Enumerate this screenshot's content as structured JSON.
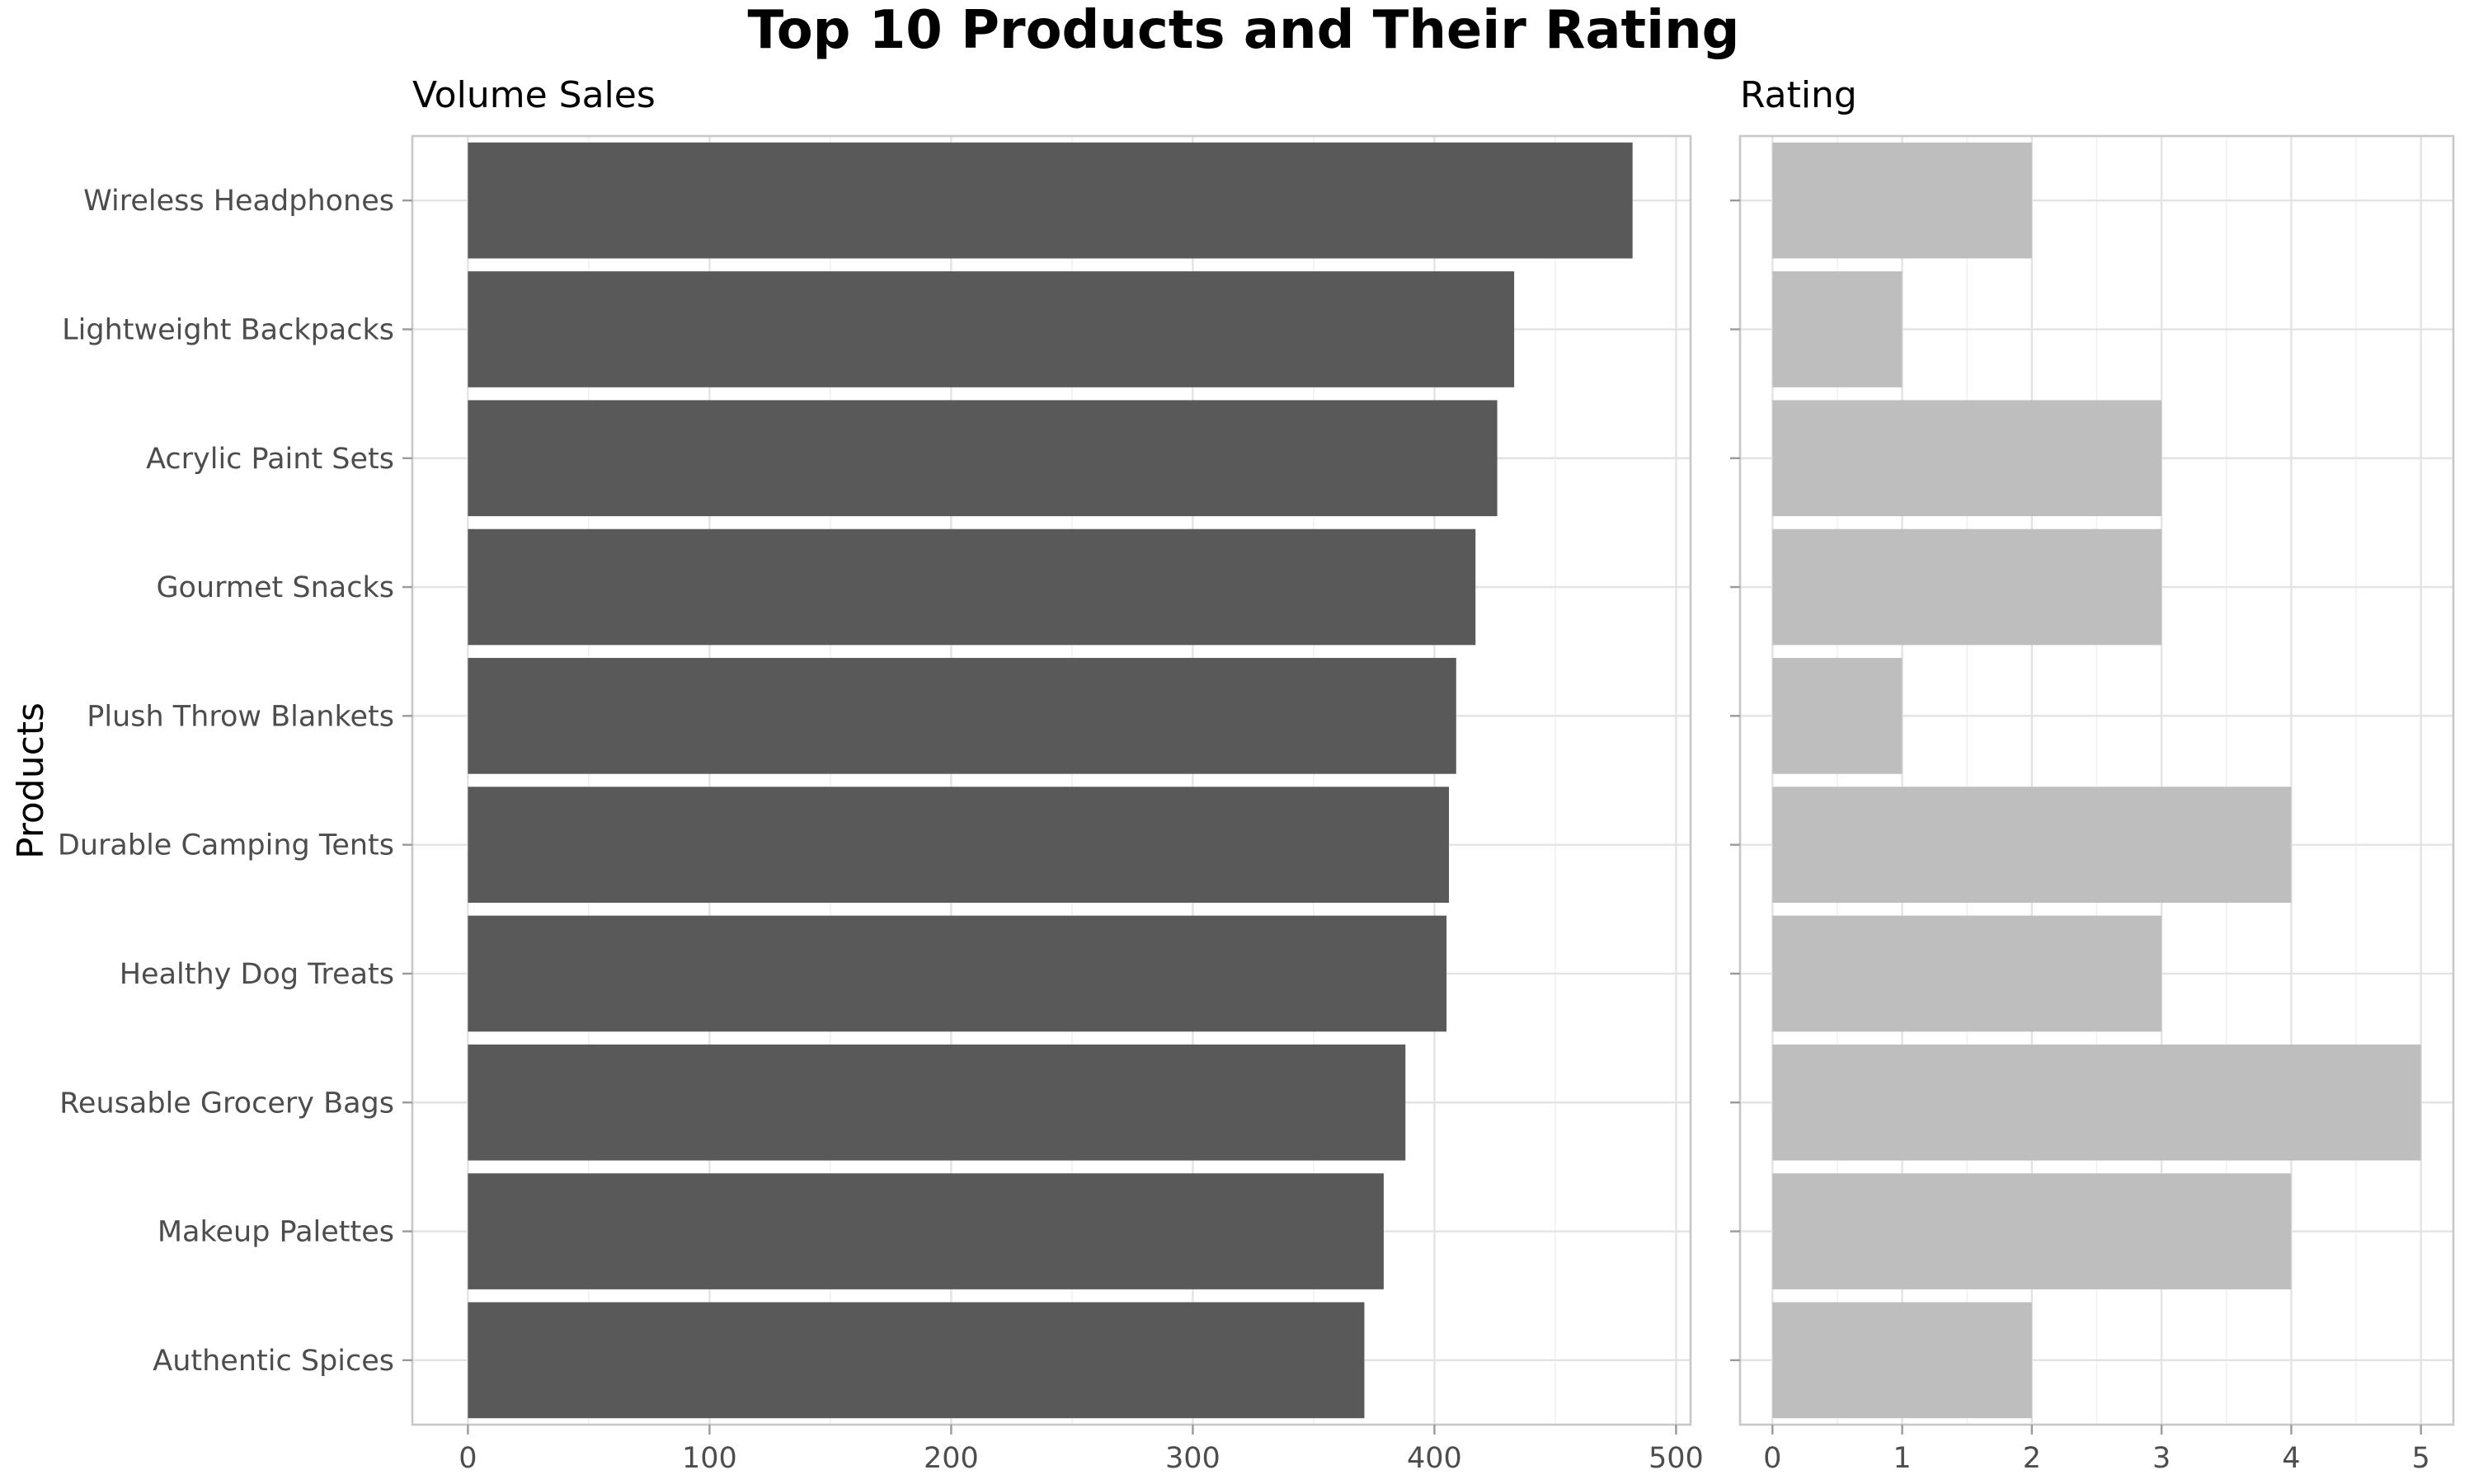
{
  "chart_data": {
    "type": "bar",
    "orientation": "horizontal",
    "title": "Top 10 Products and Their Rating",
    "ylabel": "Products",
    "categories": [
      "Wireless Headphones",
      "Lightweight Backpacks",
      "Acrylic Paint Sets",
      "Gourmet Snacks",
      "Plush Throw Blankets",
      "Durable Camping Tents",
      "Healthy Dog Treats",
      "Reusable Grocery Bags",
      "Makeup Palettes",
      "Authentic Spices"
    ],
    "panels": [
      {
        "subtitle": "Volume Sales",
        "values": [
          482,
          433,
          426,
          417,
          409,
          406,
          405,
          388,
          379,
          371
        ],
        "xlim": [
          -23,
          506
        ],
        "ticks": [
          0,
          100,
          200,
          300,
          400,
          500
        ],
        "color": "#595959",
        "grid": true
      },
      {
        "subtitle": "Rating",
        "values": [
          2,
          1,
          3,
          3,
          1,
          4,
          3,
          5,
          4,
          2
        ],
        "xlim": [
          -0.25,
          5.25
        ],
        "ticks": [
          0,
          1,
          2,
          3,
          4,
          5
        ],
        "color": "#bebebe",
        "grid": true
      }
    ]
  }
}
